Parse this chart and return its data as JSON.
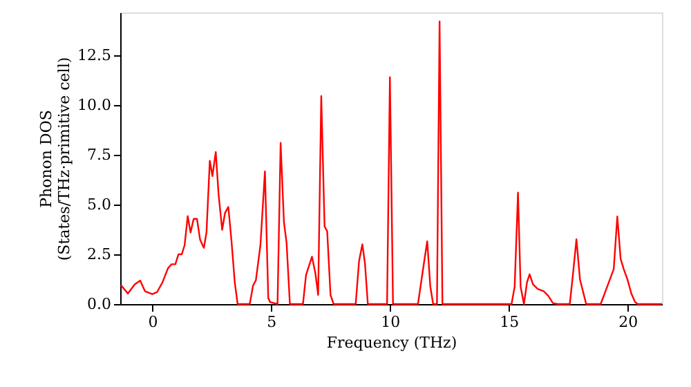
{
  "chart_data": {
    "type": "line",
    "xlabel": "Frequency (THz)",
    "ylabel": "Phonon DOS\n(States/THz·primitive cell)",
    "xlim": [
      -1.35,
      21.45
    ],
    "ylim": [
      0,
      14.65
    ],
    "xticks": [
      0,
      5,
      10,
      15,
      20
    ],
    "yticks": [
      {
        "value": 0,
        "label": "0.0"
      },
      {
        "value": 2.5,
        "label": "2.5"
      },
      {
        "value": 5,
        "label": "5.0"
      },
      {
        "value": 7.5,
        "label": "7.5"
      },
      {
        "value": 10,
        "label": "10.0"
      },
      {
        "value": 12.5,
        "label": "12.5"
      }
    ],
    "grid": false,
    "marker": "none",
    "line_style": "solid",
    "series": [
      {
        "color": "#ff0000",
        "x": [
          -1.32,
          -1.03,
          -0.74,
          -0.51,
          -0.31,
          0,
          0.2,
          0.43,
          0.66,
          0.81,
          0.97,
          1.1,
          1.24,
          1.36,
          1.49,
          1.61,
          1.74,
          1.88,
          2.01,
          2.17,
          2.28,
          2.42,
          2.53,
          2.67,
          2.79,
          2.94,
          3.06,
          3.2,
          3.33,
          3.47,
          3.59,
          4.1,
          4.24,
          4.36,
          4.55,
          4.74,
          4.88,
          4.96,
          5.27,
          5.4,
          5.54,
          5.65,
          5.79,
          6.34,
          6.47,
          6.72,
          6.86,
          6.98,
          7.11,
          7.25,
          7.36,
          7.5,
          7.63,
          8.56,
          8.7,
          8.84,
          8.95,
          9.07,
          9.88,
          10.0,
          10.13,
          11.18,
          11.43,
          11.57,
          11.7,
          11.82,
          11.98,
          12.09,
          12.21,
          15.12,
          15.25,
          15.39,
          15.5,
          15.64,
          15.77,
          15.88,
          16.02,
          16.22,
          16.47,
          16.66,
          16.86,
          17.05,
          17.57,
          17.71,
          17.85,
          18.0,
          18.26,
          18.87,
          19.13,
          19.42,
          19.57,
          19.71,
          19.84,
          20.0,
          20.16,
          20.31,
          20.42,
          21.45
        ],
        "values": [
          0.95,
          0.53,
          0.99,
          1.18,
          0.65,
          0.5,
          0.6,
          1.1,
          1.8,
          2.0,
          2.0,
          2.5,
          2.5,
          2.96,
          4.42,
          3.59,
          4.28,
          4.28,
          3.24,
          2.82,
          3.6,
          7.2,
          6.43,
          7.64,
          5.5,
          3.73,
          4.58,
          4.88,
          3.2,
          1.1,
          0,
          0,
          0.93,
          1.2,
          2.96,
          6.67,
          0.3,
          0.1,
          0,
          8.1,
          4.12,
          3.08,
          0,
          0,
          1.46,
          2.38,
          1.57,
          0.46,
          10.45,
          3.9,
          3.66,
          0.46,
          0,
          0,
          2.15,
          3.0,
          2.04,
          0,
          0,
          11.4,
          0,
          0,
          2.04,
          3.15,
          0.88,
          0,
          0,
          14.2,
          0,
          0,
          0.88,
          5.6,
          0.88,
          0,
          1.1,
          1.5,
          0.99,
          0.76,
          0.65,
          0.42,
          0.05,
          0,
          0,
          1.57,
          3.26,
          1.23,
          0,
          0,
          0.83,
          1.76,
          4.4,
          2.27,
          1.76,
          1.23,
          0.53,
          0.12,
          0,
          0
        ]
      }
    ]
  }
}
